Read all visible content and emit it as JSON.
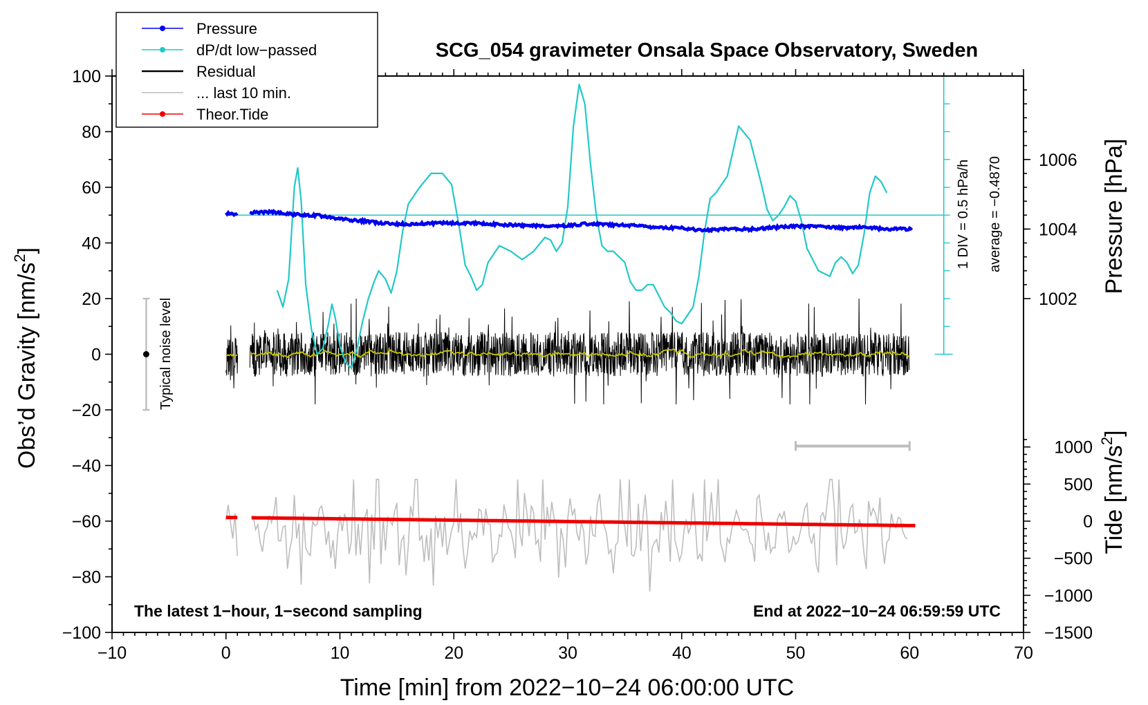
{
  "chart_data": {
    "type": "line",
    "title": "SCG_054 gravimeter Onsala Space Observatory, Sweden",
    "xlabel": "Time [min] from 2022−10−24 06:00:00 UTC",
    "ylabel": "Obs’d Gravity [nm/s",
    "ylabel_sup": "2",
    "ylabel_close": "]",
    "xlim": [
      -10,
      70
    ],
    "ylim": [
      -100,
      100
    ],
    "x_ticks": [
      -10,
      0,
      10,
      20,
      30,
      40,
      50,
      60,
      70
    ],
    "x_tick_labels": [
      "−10",
      "0",
      "10",
      "20",
      "30",
      "40",
      "50",
      "60",
      "70"
    ],
    "y_ticks": [
      -100,
      -80,
      -60,
      -40,
      -20,
      0,
      20,
      40,
      60,
      80,
      100
    ],
    "y_tick_labels": [
      "−100",
      "−80",
      "−60",
      "−40",
      "−20",
      "0",
      "20",
      "40",
      "60",
      "80",
      "100"
    ],
    "pressure_axis": {
      "label": "Pressure [hPa]",
      "ticks": [
        1002,
        1004,
        1006
      ],
      "tick_labels": [
        "1002",
        "1004",
        "1006"
      ],
      "gravity_equivalent": [
        20,
        45,
        70
      ]
    },
    "tide_axis": {
      "label": "Tide [nm/s",
      "label_sup": "2",
      "label_close": "]",
      "ticks": [
        -1500,
        -1000,
        -500,
        0,
        500,
        1000
      ],
      "tick_labels": [
        "−1500",
        "−1000",
        "−500",
        "0",
        "500",
        "1000"
      ],
      "range": [
        -1500,
        1500
      ]
    },
    "legend": {
      "placement": "top-left",
      "entries": [
        {
          "label": "Pressure",
          "color": "#0000ee",
          "marker": true
        },
        {
          "label": "dP/dt low−passed",
          "color": "#22c8c8",
          "marker": true
        },
        {
          "label": "Residual",
          "color": "#000000",
          "marker": false
        },
        {
          "label": "... last 10 min.",
          "color": "#bdbdbd",
          "marker": false
        },
        {
          "label": "Theor.Tide",
          "color": "#ee0000",
          "marker": true
        }
      ]
    },
    "annotations": {
      "noise_label": "Typical noise level",
      "noise_range": [
        -20,
        20
      ],
      "noise_x": -7,
      "dpdt_div": "1 DIV = 0.5 hPa/h",
      "dpdt_avg": "average = −0.4870",
      "dpdt_axis_x": 63,
      "dpdt_axis_range": [
        0,
        100
      ],
      "dpdt_zero_level": 50,
      "bottom_left": "The latest 1−hour, 1−second sampling",
      "bottom_right": "End at 2022−10−24 06:59:59 UTC",
      "window_bar_x": [
        50,
        60
      ],
      "window_bar_y": -33
    },
    "series": [
      {
        "name": "Pressure",
        "color": "#0000ee",
        "unit": "gravity-equivalent",
        "x": [
          0,
          1,
          2,
          4,
          6,
          8,
          10,
          12,
          14,
          16,
          18,
          20,
          22,
          24,
          26,
          28,
          30,
          32,
          34,
          36,
          38,
          40,
          42,
          44,
          46,
          48,
          50,
          52,
          54,
          56,
          58,
          60
        ],
        "values": [
          50.6,
          50.3,
          50.8,
          51.2,
          50.2,
          49.9,
          48.6,
          47.9,
          47.0,
          46.8,
          47.0,
          47.2,
          47.0,
          46.6,
          46.3,
          46.1,
          46.2,
          47.0,
          46.5,
          46.2,
          45.5,
          45.3,
          44.4,
          45.1,
          44.9,
          45.5,
          46.0,
          45.9,
          45.5,
          45.6,
          45.0,
          45.0
        ]
      },
      {
        "name": "dP/dt low−passed",
        "color": "#22c8c8",
        "unit": "gravity-equivalent",
        "x": [
          4.5,
          5,
          5.5,
          6,
          6.3,
          6.6,
          7,
          7.5,
          8,
          8.5,
          9,
          9.3,
          9.6,
          10,
          10.5,
          11,
          11.5,
          12,
          12.5,
          13,
          13.4,
          14,
          14.5,
          15,
          15.5,
          16,
          17,
          18,
          19,
          19.8,
          20.5,
          21,
          21.5,
          22,
          22.5,
          23,
          24,
          25,
          26,
          27,
          28,
          28.5,
          29,
          29.5,
          30,
          30.5,
          31,
          31.5,
          32,
          32.5,
          33,
          33.5,
          34,
          35,
          35.5,
          36,
          36.5,
          37,
          37.5,
          38,
          38.5,
          39,
          39.5,
          40,
          41,
          41.5,
          42,
          42.5,
          43,
          44,
          45,
          46,
          47,
          47.5,
          48,
          48.5,
          49,
          49.5,
          50,
          50.5,
          51,
          52,
          53,
          53.5,
          54,
          54.5,
          55,
          55.5,
          56,
          56.5,
          57,
          57.5,
          58
        ],
        "values": [
          23,
          17,
          27,
          60,
          67,
          55,
          25,
          9,
          0,
          2,
          11,
          18,
          13,
          3,
          -3,
          -5,
          2,
          12,
          20,
          26,
          30,
          27,
          22,
          30,
          44,
          54,
          60,
          65,
          65,
          61,
          45,
          32,
          28,
          23,
          25,
          33,
          39,
          37,
          34,
          37,
          42,
          41,
          37,
          40,
          53,
          82,
          97,
          90,
          68,
          50,
          39,
          37,
          37,
          33,
          26,
          23,
          23,
          25,
          25,
          21,
          17,
          15,
          12,
          11,
          17,
          28,
          44,
          56,
          58,
          64,
          82,
          77,
          61,
          52,
          48,
          50,
          53,
          57,
          55,
          48,
          38,
          30,
          28,
          33,
          35,
          33,
          29,
          32,
          43,
          58,
          64,
          62,
          58
        ]
      },
      {
        "name": "Residual",
        "color": "#000000",
        "amplitude": [
          -18,
          20
        ],
        "mean": 0
      },
      {
        "name": "... last 10 min.",
        "color": "#bdbdbd",
        "amplitude": [
          -86,
          -45
        ],
        "mean": -64
      },
      {
        "name": "Theor.Tide",
        "color": "#ee0000",
        "unit": "nm/s2",
        "x": [
          0,
          60
        ],
        "values": [
          50,
          -60
        ]
      }
    ]
  }
}
